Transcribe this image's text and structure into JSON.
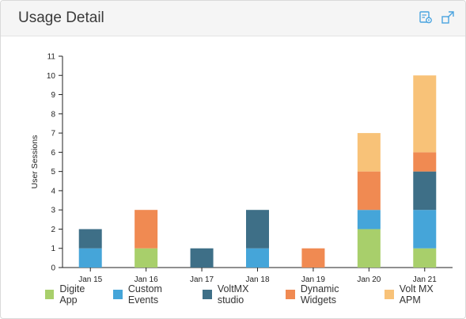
{
  "header": {
    "title": "Usage Detail",
    "icons": [
      "export-report-icon",
      "expand-icon"
    ]
  },
  "colors": {
    "Digite App": "#a8cf6b",
    "Custom Events": "#45a5d9",
    "VoltMX studio": "#3e6f87",
    "Dynamic Widgets": "#f08a52",
    "Volt MX APM": "#f8c278"
  },
  "chart_data": {
    "type": "bar",
    "stacked": true,
    "categories": [
      "Jan 15",
      "Jan 16",
      "Jan 17",
      "Jan 18",
      "Jan 19",
      "Jan 20",
      "Jan 21"
    ],
    "series": [
      {
        "name": "Digite App",
        "values": [
          0,
          1,
          0,
          0,
          0,
          2,
          1
        ]
      },
      {
        "name": "Custom Events",
        "values": [
          1,
          0,
          0,
          1,
          0,
          1,
          2
        ]
      },
      {
        "name": "VoltMX studio",
        "values": [
          1,
          0,
          1,
          2,
          0,
          0,
          2
        ]
      },
      {
        "name": "Dynamic Widgets",
        "values": [
          0,
          2,
          0,
          0,
          1,
          2,
          1
        ]
      },
      {
        "name": "Volt MX APM",
        "values": [
          0,
          0,
          0,
          0,
          0,
          2,
          4
        ]
      }
    ],
    "xlabel": "",
    "ylabel": "User Sessions",
    "ylim": [
      0,
      11
    ],
    "yticks": [
      "0",
      "1",
      "2",
      "3",
      "4",
      "5",
      "6",
      "7",
      "8",
      "9",
      "10",
      "11"
    ],
    "legend_position": "bottom",
    "grid": false
  }
}
